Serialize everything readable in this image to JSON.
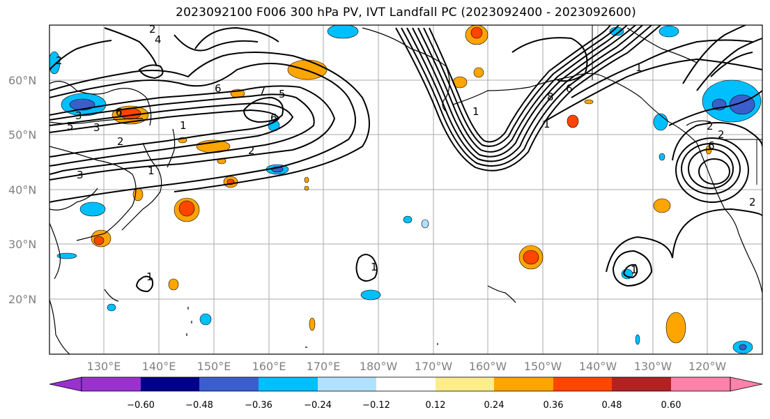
{
  "title": "2023092100 F006 300 hPa PV, IVT Landfall PC (2023092400 - 2023092600)",
  "lat_labels": [
    "60°N",
    "50°N",
    "40°N",
    "30°N",
    "20°N"
  ],
  "lon_labels": [
    "130°E",
    "140°E",
    "150°E",
    "160°E",
    "170°E",
    "180°W",
    "170°W",
    "160°W",
    "150°W",
    "140°W",
    "130°W",
    "120°W"
  ],
  "colorbar": {
    "ticks": [
      "−0.60",
      "−0.48",
      "−0.36",
      "−0.24",
      "−0.12",
      "0.12",
      "0.24",
      "0.36",
      "0.48",
      "0.60"
    ],
    "colors": [
      "#9932cc",
      "#00008b",
      "#3a5fcd",
      "#00bfff",
      "#b0e2ff",
      "#ffffff",
      "#ffec8b",
      "#ffa500",
      "#ff4500",
      "#b22222",
      "#ff82ab"
    ]
  },
  "contour_labels": [
    "2",
    "4",
    "3",
    "5",
    "6",
    "7",
    "6",
    "5",
    "6",
    "3",
    "2",
    "3",
    "1",
    "2",
    "1",
    "8",
    "6",
    "1",
    "1",
    "2",
    "2",
    "2",
    "6",
    "1",
    "1",
    "1",
    "2",
    "1"
  ]
}
